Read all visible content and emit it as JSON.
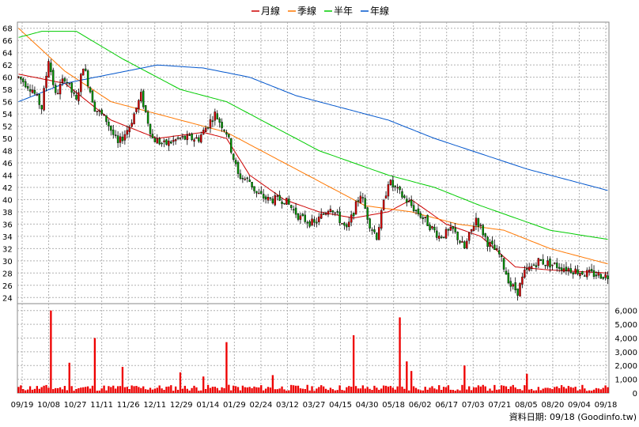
{
  "chart_data": {
    "type": "candlestick-with-volume",
    "legend": [
      {
        "label": "月線",
        "color": "#cc0000"
      },
      {
        "label": "季線",
        "color": "#ff7700"
      },
      {
        "label": "半年",
        "color": "#00cc00"
      },
      {
        "label": "年線",
        "color": "#0055cc"
      }
    ],
    "price_ticks": [
      24,
      26,
      28,
      30,
      32,
      34,
      36,
      38,
      40,
      42,
      44,
      46,
      48,
      50,
      52,
      54,
      56,
      58,
      60,
      62,
      64,
      66,
      68
    ],
    "price_ylim": [
      23,
      69
    ],
    "volume_ticks": [
      "1,000",
      "2,000",
      "3,000",
      "4,000",
      "5,000",
      "6,000"
    ],
    "volume_tick_values": [
      1000,
      2000,
      3000,
      4000,
      5000,
      6000
    ],
    "volume_ylim": [
      0,
      6500
    ],
    "x_labels": [
      "09/19",
      "10/08",
      "10/27",
      "11/11",
      "11/26",
      "12/11",
      "12/29",
      "01/14",
      "01/29",
      "02/24",
      "03/12",
      "03/27",
      "04/15",
      "04/30",
      "05/18",
      "06/02",
      "06/17",
      "07/03",
      "07/21",
      "08/05",
      "08/20",
      "09/04",
      "09/18"
    ],
    "footer": "資料日期: 09/18 (Goodinfo.tw)",
    "price_path": [
      [
        0,
        60
      ],
      [
        6,
        58
      ],
      [
        10,
        55
      ],
      [
        13,
        63
      ],
      [
        16,
        57
      ],
      [
        20,
        60
      ],
      [
        25,
        56
      ],
      [
        28,
        62
      ],
      [
        33,
        55
      ],
      [
        38,
        53
      ],
      [
        43,
        49
      ],
      [
        48,
        52
      ],
      [
        53,
        57
      ],
      [
        58,
        50
      ],
      [
        63,
        49
      ],
      [
        70,
        50
      ],
      [
        78,
        50
      ],
      [
        85,
        54
      ],
      [
        90,
        51
      ],
      [
        95,
        44
      ],
      [
        100,
        43
      ],
      [
        103,
        41
      ],
      [
        108,
        40
      ],
      [
        115,
        40
      ],
      [
        122,
        37
      ],
      [
        128,
        36
      ],
      [
        135,
        39
      ],
      [
        142,
        35
      ],
      [
        148,
        41
      ],
      [
        152,
        36
      ],
      [
        155,
        34
      ],
      [
        160,
        43
      ],
      [
        165,
        41
      ],
      [
        170,
        39
      ],
      [
        175,
        37
      ],
      [
        182,
        34
      ],
      [
        188,
        35
      ],
      [
        193,
        32
      ],
      [
        198,
        37
      ],
      [
        203,
        33
      ],
      [
        208,
        31
      ],
      [
        213,
        26
      ],
      [
        216,
        25
      ],
      [
        219,
        28
      ],
      [
        225,
        30
      ],
      [
        235,
        29
      ],
      [
        245,
        28
      ],
      [
        255,
        27.5
      ]
    ],
    "ma_month": [
      [
        0,
        60.5
      ],
      [
        20,
        59
      ],
      [
        40,
        53
      ],
      [
        60,
        50
      ],
      [
        80,
        51
      ],
      [
        90,
        50
      ],
      [
        100,
        44
      ],
      [
        115,
        40
      ],
      [
        130,
        38
      ],
      [
        145,
        37
      ],
      [
        160,
        38
      ],
      [
        170,
        40
      ],
      [
        185,
        36
      ],
      [
        200,
        34
      ],
      [
        215,
        29
      ],
      [
        230,
        28.5
      ],
      [
        255,
        28
      ]
    ],
    "ma_quarter": [
      [
        0,
        68
      ],
      [
        20,
        61
      ],
      [
        40,
        56
      ],
      [
        60,
        54
      ],
      [
        80,
        52
      ],
      [
        90,
        51
      ],
      [
        110,
        47
      ],
      [
        130,
        43
      ],
      [
        150,
        39
      ],
      [
        170,
        38
      ],
      [
        190,
        36
      ],
      [
        210,
        35
      ],
      [
        230,
        32
      ],
      [
        255,
        29.5
      ]
    ],
    "ma_half": [
      [
        0,
        66.5
      ],
      [
        10,
        67.5
      ],
      [
        25,
        67.5
      ],
      [
        45,
        63
      ],
      [
        70,
        58
      ],
      [
        90,
        56
      ],
      [
        110,
        52
      ],
      [
        130,
        48
      ],
      [
        160,
        44
      ],
      [
        180,
        42
      ],
      [
        200,
        39
      ],
      [
        215,
        37
      ],
      [
        230,
        35
      ],
      [
        255,
        33.5
      ]
    ],
    "ma_year": [
      [
        0,
        56
      ],
      [
        20,
        59
      ],
      [
        40,
        60.5
      ],
      [
        60,
        62
      ],
      [
        80,
        61.5
      ],
      [
        100,
        60
      ],
      [
        120,
        57
      ],
      [
        140,
        55
      ],
      [
        160,
        53
      ],
      [
        180,
        50
      ],
      [
        200,
        47.5
      ],
      [
        220,
        45
      ],
      [
        240,
        43
      ],
      [
        255,
        41.5
      ]
    ],
    "volume_spikes": [
      [
        14,
        6000
      ],
      [
        22,
        2200
      ],
      [
        33,
        4000
      ],
      [
        45,
        1900
      ],
      [
        70,
        1500
      ],
      [
        80,
        1200
      ],
      [
        90,
        3700
      ],
      [
        110,
        1300
      ],
      [
        145,
        4200
      ],
      [
        165,
        5500
      ],
      [
        168,
        2300
      ],
      [
        170,
        1600
      ],
      [
        193,
        2000
      ],
      [
        220,
        1400
      ]
    ]
  }
}
